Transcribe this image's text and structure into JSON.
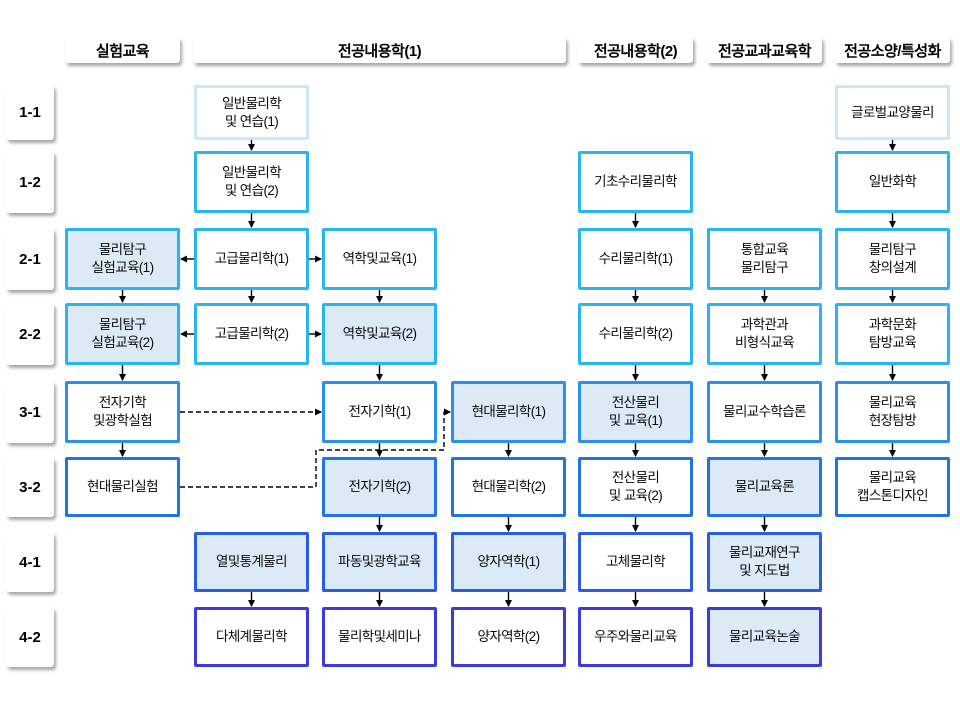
{
  "palette": {
    "background": "#ffffff",
    "border_lightest": "#c9e8f9",
    "border_cyan": "#29b5f1",
    "border_blue1": "#2b8ef0",
    "border_blue2": "#2272ea",
    "border_blue3": "#2a5ce8",
    "border_indigo": "#3b3be0",
    "fill_light": "#dbeaf4",
    "fill_white": "#ffffff",
    "edge_color": "#000000",
    "text_color": "#0a0a0a"
  },
  "headers": [
    {
      "id": "exp",
      "label": "실험교육"
    },
    {
      "id": "major1",
      "label": "전공내용학(1)"
    },
    {
      "id": "major2",
      "label": "전공내용학(2)"
    },
    {
      "id": "pedagogy",
      "label": "전공교과교육학"
    },
    {
      "id": "liberal",
      "label": "전공소양/특성화"
    }
  ],
  "row_labels": [
    "1-1",
    "1-2",
    "2-1",
    "2-2",
    "3-1",
    "3-2",
    "4-1",
    "4-2"
  ],
  "nodes": [
    {
      "id": "inquiry-lab-1",
      "col": "exp",
      "row": 2,
      "label": "물리탐구\n실험교육(1)",
      "fill": "light",
      "border": "cyan"
    },
    {
      "id": "inquiry-lab-2",
      "col": "exp",
      "row": 3,
      "label": "물리탐구\n실험교육(2)",
      "fill": "light",
      "border": "cyan"
    },
    {
      "id": "em-optics-lab",
      "col": "exp",
      "row": 4,
      "label": "전자기학\n및광학실험",
      "fill": "white",
      "border": "blue1"
    },
    {
      "id": "modern-phys-lab",
      "col": "exp",
      "row": 5,
      "label": "현대물리실험",
      "fill": "white",
      "border": "blue2"
    },
    {
      "id": "gen-phys-1",
      "col": "a",
      "row": 0,
      "label": "일반물리학\n및 연습(1)",
      "fill": "white",
      "border": "lightest"
    },
    {
      "id": "gen-phys-2",
      "col": "a",
      "row": 1,
      "label": "일반물리학\n및 연습(2)",
      "fill": "white",
      "border": "cyan"
    },
    {
      "id": "adv-phys-1",
      "col": "a",
      "row": 2,
      "label": "고급물리학(1)",
      "fill": "white",
      "border": "cyan"
    },
    {
      "id": "adv-phys-2",
      "col": "a",
      "row": 3,
      "label": "고급물리학(2)",
      "fill": "white",
      "border": "cyan"
    },
    {
      "id": "thermal-stat-phys",
      "col": "a",
      "row": 6,
      "label": "열및통계물리",
      "fill": "light",
      "border": "blue3"
    },
    {
      "id": "many-body-phys",
      "col": "a",
      "row": 7,
      "label": "다체계물리학",
      "fill": "white",
      "border": "indigo"
    },
    {
      "id": "mech-edu-1",
      "col": "b",
      "row": 2,
      "label": "역학및교육(1)",
      "fill": "white",
      "border": "cyan"
    },
    {
      "id": "mech-edu-2",
      "col": "b",
      "row": 3,
      "label": "역학및교육(2)",
      "fill": "light",
      "border": "cyan"
    },
    {
      "id": "em-1",
      "col": "b",
      "row": 4,
      "label": "전자기학(1)",
      "fill": "white",
      "border": "blue1"
    },
    {
      "id": "em-2",
      "col": "b",
      "row": 5,
      "label": "전자기학(2)",
      "fill": "light",
      "border": "blue2"
    },
    {
      "id": "wave-optics-edu",
      "col": "b",
      "row": 6,
      "label": "파동및광학교육",
      "fill": "light",
      "border": "blue3"
    },
    {
      "id": "phys-seminar",
      "col": "b",
      "row": 7,
      "label": "물리학및세미나",
      "fill": "white",
      "border": "indigo"
    },
    {
      "id": "modern-phys-1",
      "col": "c",
      "row": 4,
      "label": "현대물리학(1)",
      "fill": "light",
      "border": "blue1"
    },
    {
      "id": "modern-phys-2",
      "col": "c",
      "row": 5,
      "label": "현대물리학(2)",
      "fill": "white",
      "border": "blue2"
    },
    {
      "id": "quantum-1",
      "col": "c",
      "row": 6,
      "label": "양자역학(1)",
      "fill": "light",
      "border": "blue3"
    },
    {
      "id": "quantum-2",
      "col": "c",
      "row": 7,
      "label": "양자역학(2)",
      "fill": "white",
      "border": "indigo"
    },
    {
      "id": "basic-math-phys",
      "col": "m2",
      "row": 1,
      "label": "기초수리물리학",
      "fill": "white",
      "border": "cyan"
    },
    {
      "id": "math-phys-1",
      "col": "m2",
      "row": 2,
      "label": "수리물리학(1)",
      "fill": "white",
      "border": "cyan"
    },
    {
      "id": "math-phys-2",
      "col": "m2",
      "row": 3,
      "label": "수리물리학(2)",
      "fill": "white",
      "border": "cyan"
    },
    {
      "id": "comp-phys-edu-1",
      "col": "m2",
      "row": 4,
      "label": "전산물리\n및 교육(1)",
      "fill": "light",
      "border": "blue1"
    },
    {
      "id": "comp-phys-edu-2",
      "col": "m2",
      "row": 5,
      "label": "전산물리\n및 교육(2)",
      "fill": "white",
      "border": "blue2"
    },
    {
      "id": "solid-state-phys",
      "col": "m2",
      "row": 6,
      "label": "고체물리학",
      "fill": "white",
      "border": "blue3"
    },
    {
      "id": "universe-phys-edu",
      "col": "m2",
      "row": 7,
      "label": "우주와물리교육",
      "fill": "white",
      "border": "indigo"
    },
    {
      "id": "integrated-inquiry",
      "col": "edu",
      "row": 2,
      "label": "통합교육\n물리탐구",
      "fill": "white",
      "border": "cyan"
    },
    {
      "id": "museum-informal-edu",
      "col": "edu",
      "row": 3,
      "label": "과학관과\n비형식교육",
      "fill": "white",
      "border": "cyan"
    },
    {
      "id": "teaching-learning",
      "col": "edu",
      "row": 4,
      "label": "물리교수학습론",
      "fill": "white",
      "border": "blue1"
    },
    {
      "id": "phys-edu-theory",
      "col": "edu",
      "row": 5,
      "label": "물리교육론",
      "fill": "light",
      "border": "blue2"
    },
    {
      "id": "textbook-guidance",
      "col": "edu",
      "row": 6,
      "label": "물리교재연구\n및 지도법",
      "fill": "light",
      "border": "blue3"
    },
    {
      "id": "phys-edu-essay",
      "col": "edu",
      "row": 7,
      "label": "물리교육논술",
      "fill": "light",
      "border": "indigo"
    },
    {
      "id": "global-liberal-phys",
      "col": "lib",
      "row": 0,
      "label": "글로벌교양물리",
      "fill": "white",
      "border": "lightest"
    },
    {
      "id": "gen-chemistry",
      "col": "lib",
      "row": 1,
      "label": "일반화학",
      "fill": "white",
      "border": "cyan"
    },
    {
      "id": "inquiry-design",
      "col": "lib",
      "row": 2,
      "label": "물리탐구\n창의설계",
      "fill": "white",
      "border": "cyan"
    },
    {
      "id": "sci-culture-tour",
      "col": "lib",
      "row": 3,
      "label": "과학문화\n탐방교육",
      "fill": "white",
      "border": "cyan"
    },
    {
      "id": "phys-edu-field-trip",
      "col": "lib",
      "row": 4,
      "label": "물리교육\n현장탐방",
      "fill": "white",
      "border": "blue1"
    },
    {
      "id": "phys-edu-capstone",
      "col": "lib",
      "row": 5,
      "label": "물리교육\n캡스톤디자인",
      "fill": "white",
      "border": "blue2"
    }
  ],
  "edges": [
    {
      "from": "inquiry-lab-1",
      "to": "inquiry-lab-2",
      "style": "solid"
    },
    {
      "from": "inquiry-lab-2",
      "to": "em-optics-lab",
      "style": "solid"
    },
    {
      "from": "em-optics-lab",
      "to": "modern-phys-lab",
      "style": "solid"
    },
    {
      "from": "gen-phys-1",
      "to": "gen-phys-2",
      "style": "solid"
    },
    {
      "from": "gen-phys-2",
      "to": "adv-phys-1",
      "style": "solid"
    },
    {
      "from": "adv-phys-1",
      "to": "adv-phys-2",
      "style": "solid"
    },
    {
      "from": "thermal-stat-phys",
      "to": "many-body-phys",
      "style": "solid"
    },
    {
      "from": "mech-edu-1",
      "to": "mech-edu-2",
      "style": "solid"
    },
    {
      "from": "mech-edu-2",
      "to": "em-1",
      "style": "solid"
    },
    {
      "from": "em-1",
      "to": "em-2",
      "style": "solid"
    },
    {
      "from": "em-2",
      "to": "wave-optics-edu",
      "style": "solid"
    },
    {
      "from": "wave-optics-edu",
      "to": "phys-seminar",
      "style": "solid"
    },
    {
      "from": "modern-phys-1",
      "to": "modern-phys-2",
      "style": "solid"
    },
    {
      "from": "modern-phys-2",
      "to": "quantum-1",
      "style": "solid"
    },
    {
      "from": "quantum-1",
      "to": "quantum-2",
      "style": "solid"
    },
    {
      "from": "basic-math-phys",
      "to": "math-phys-1",
      "style": "solid"
    },
    {
      "from": "math-phys-1",
      "to": "math-phys-2",
      "style": "solid"
    },
    {
      "from": "math-phys-2",
      "to": "comp-phys-edu-1",
      "style": "solid"
    },
    {
      "from": "comp-phys-edu-1",
      "to": "comp-phys-edu-2",
      "style": "solid"
    },
    {
      "from": "comp-phys-edu-2",
      "to": "solid-state-phys",
      "style": "solid"
    },
    {
      "from": "solid-state-phys",
      "to": "universe-phys-edu",
      "style": "solid"
    },
    {
      "from": "integrated-inquiry",
      "to": "museum-informal-edu",
      "style": "solid"
    },
    {
      "from": "museum-informal-edu",
      "to": "teaching-learning",
      "style": "solid"
    },
    {
      "from": "teaching-learning",
      "to": "phys-edu-theory",
      "style": "solid"
    },
    {
      "from": "phys-edu-theory",
      "to": "textbook-guidance",
      "style": "solid"
    },
    {
      "from": "textbook-guidance",
      "to": "phys-edu-essay",
      "style": "solid"
    },
    {
      "from": "global-liberal-phys",
      "to": "gen-chemistry",
      "style": "solid"
    },
    {
      "from": "gen-chemistry",
      "to": "inquiry-design",
      "style": "solid"
    },
    {
      "from": "inquiry-design",
      "to": "sci-culture-tour",
      "style": "solid"
    },
    {
      "from": "sci-culture-tour",
      "to": "phys-edu-field-trip",
      "style": "solid"
    },
    {
      "from": "phys-edu-field-trip",
      "to": "phys-edu-capstone",
      "style": "solid"
    },
    {
      "from": "adv-phys-1",
      "to": "inquiry-lab-1",
      "style": "solid"
    },
    {
      "from": "adv-phys-1",
      "to": "mech-edu-1",
      "style": "solid"
    },
    {
      "from": "adv-phys-2",
      "to": "inquiry-lab-2",
      "style": "solid"
    },
    {
      "from": "adv-phys-2",
      "to": "mech-edu-2",
      "style": "solid"
    },
    {
      "from": "em-optics-lab",
      "to": "em-1",
      "style": "dashed"
    },
    {
      "from": "modern-phys-lab",
      "to": "modern-phys-1",
      "style": "dashed"
    }
  ]
}
